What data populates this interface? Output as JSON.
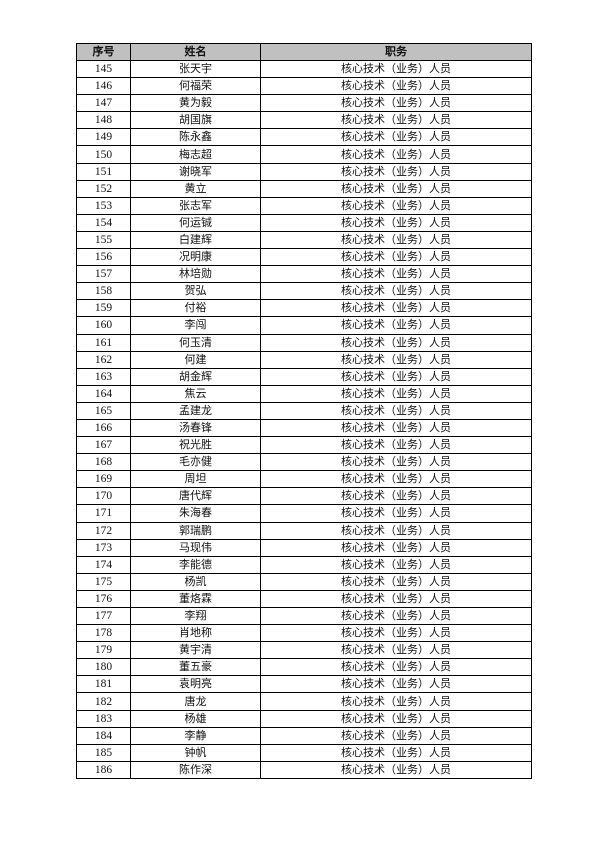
{
  "table": {
    "headers": [
      "序号",
      "姓名",
      "职务"
    ],
    "rows": [
      [
        "145",
        "张天宇",
        "核心技术（业务）人员"
      ],
      [
        "146",
        "何福荣",
        "核心技术（业务）人员"
      ],
      [
        "147",
        "黄为毅",
        "核心技术（业务）人员"
      ],
      [
        "148",
        "胡国旗",
        "核心技术（业务）人员"
      ],
      [
        "149",
        "陈永鑫",
        "核心技术（业务）人员"
      ],
      [
        "150",
        "梅志超",
        "核心技术（业务）人员"
      ],
      [
        "151",
        "谢晓军",
        "核心技术（业务）人员"
      ],
      [
        "152",
        "黄立",
        "核心技术（业务）人员"
      ],
      [
        "153",
        "张志军",
        "核心技术（业务）人员"
      ],
      [
        "154",
        "何运铖",
        "核心技术（业务）人员"
      ],
      [
        "155",
        "白建辉",
        "核心技术（业务）人员"
      ],
      [
        "156",
        "况明康",
        "核心技术（业务）人员"
      ],
      [
        "157",
        "林培勋",
        "核心技术（业务）人员"
      ],
      [
        "158",
        "贺弘",
        "核心技术（业务）人员"
      ],
      [
        "159",
        "付裕",
        "核心技术（业务）人员"
      ],
      [
        "160",
        "李闯",
        "核心技术（业务）人员"
      ],
      [
        "161",
        "何玉清",
        "核心技术（业务）人员"
      ],
      [
        "162",
        "何建",
        "核心技术（业务）人员"
      ],
      [
        "163",
        "胡金辉",
        "核心技术（业务）人员"
      ],
      [
        "164",
        "焦云",
        "核心技术（业务）人员"
      ],
      [
        "165",
        "孟建龙",
        "核心技术（业务）人员"
      ],
      [
        "166",
        "汤春锋",
        "核心技术（业务）人员"
      ],
      [
        "167",
        "祝光胜",
        "核心技术（业务）人员"
      ],
      [
        "168",
        "毛亦健",
        "核心技术（业务）人员"
      ],
      [
        "169",
        "周坦",
        "核心技术（业务）人员"
      ],
      [
        "170",
        "唐代辉",
        "核心技术（业务）人员"
      ],
      [
        "171",
        "朱海春",
        "核心技术（业务）人员"
      ],
      [
        "172",
        "郭瑞鹏",
        "核心技术（业务）人员"
      ],
      [
        "173",
        "马现伟",
        "核心技术（业务）人员"
      ],
      [
        "174",
        "李能德",
        "核心技术（业务）人员"
      ],
      [
        "175",
        "杨凯",
        "核心技术（业务）人员"
      ],
      [
        "176",
        "董烙霖",
        "核心技术（业务）人员"
      ],
      [
        "177",
        "李翔",
        "核心技术（业务）人员"
      ],
      [
        "178",
        "肖地称",
        "核心技术（业务）人员"
      ],
      [
        "179",
        "黄宇清",
        "核心技术（业务）人员"
      ],
      [
        "180",
        "董五豪",
        "核心技术（业务）人员"
      ],
      [
        "181",
        "袁明亮",
        "核心技术（业务）人员"
      ],
      [
        "182",
        "唐龙",
        "核心技术（业务）人员"
      ],
      [
        "183",
        "杨雄",
        "核心技术（业务）人员"
      ],
      [
        "184",
        "李静",
        "核心技术（业务）人员"
      ],
      [
        "185",
        "钟帆",
        "核心技术（业务）人员"
      ],
      [
        "186",
        "陈作深",
        "核心技术（业务）人员"
      ]
    ]
  }
}
